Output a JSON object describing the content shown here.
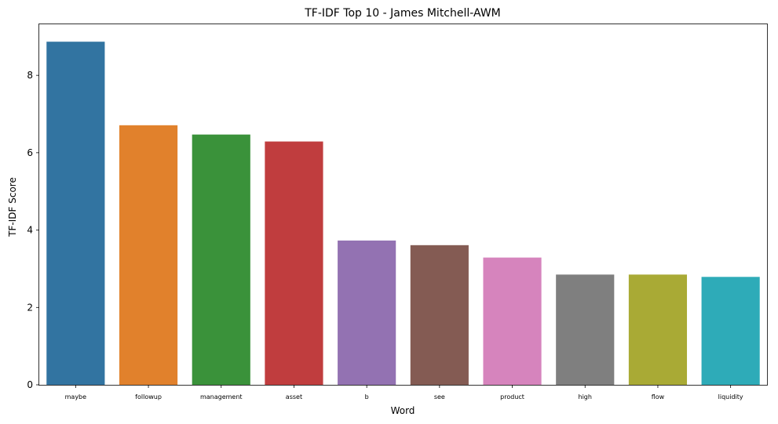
{
  "chart_data": {
    "type": "bar",
    "title": "TF-IDF Top 10 - James Mitchell-AWM",
    "xlabel": "Word",
    "ylabel": "TF-IDF Score",
    "categories": [
      "maybe",
      "followup",
      "management",
      "asset",
      "b",
      "see",
      "product",
      "high",
      "flow",
      "liquidity"
    ],
    "values": [
      8.87,
      6.71,
      6.47,
      6.29,
      3.73,
      3.61,
      3.29,
      2.85,
      2.85,
      2.79
    ],
    "colors": [
      "#3274a1",
      "#e1812c",
      "#3a923a",
      "#c03d3e",
      "#9372b2",
      "#845b53",
      "#d684bd",
      "#7f7f7f",
      "#a9aa35",
      "#2eabb8"
    ],
    "ylim": [
      0,
      9.32
    ],
    "yticks": [
      0,
      2,
      4,
      6,
      8
    ],
    "grid": false,
    "legend": "none"
  }
}
